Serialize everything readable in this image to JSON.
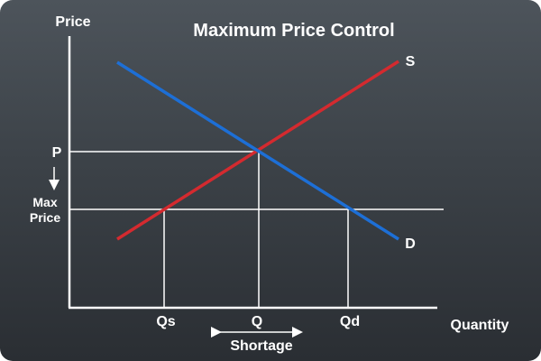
{
  "diagram": {
    "title": "Maximum Price Control",
    "axes": {
      "y_label": "Price",
      "x_label": "Quantity"
    },
    "price_labels": {
      "equilibrium": "P",
      "max_price_line1": "Max",
      "max_price_line2": "Price"
    },
    "quantity_labels": {
      "supplied": "Qs",
      "equilibrium": "Q",
      "demanded": "Qd"
    },
    "curves": {
      "supply": {
        "label": "S",
        "color": "#d42a2f"
      },
      "demand": {
        "label": "D",
        "color": "#1d6fd6"
      }
    },
    "shortage_label": "Shortage"
  }
}
